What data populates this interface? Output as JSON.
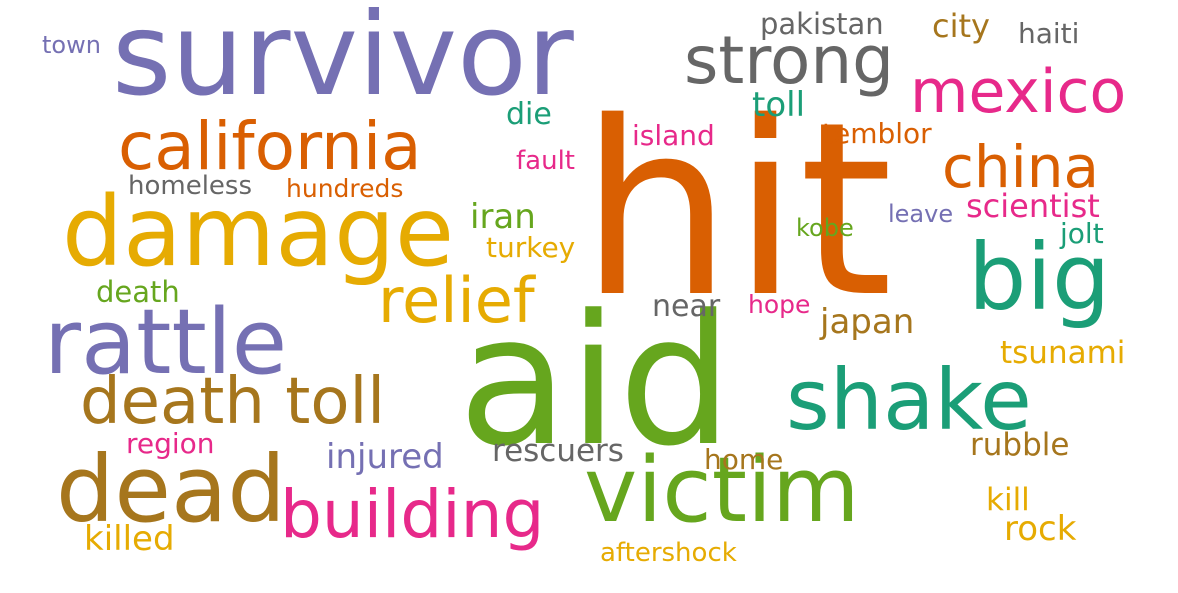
{
  "palette": {
    "purple": "#7570b3",
    "orange": "#d95f02",
    "teal": "#1b9e77",
    "green": "#66a61e",
    "gray": "#666666",
    "magenta": "#e7298a",
    "gold": "#e6ab02",
    "brown": "#a6761d"
  },
  "words": [
    {
      "text": "survivor",
      "color": "purple"
    },
    {
      "text": "hit",
      "color": "orange"
    },
    {
      "text": "aid",
      "color": "green"
    },
    {
      "text": "strong",
      "color": "gray"
    },
    {
      "text": "mexico",
      "color": "magenta"
    },
    {
      "text": "california",
      "color": "orange"
    },
    {
      "text": "damage",
      "color": "gold"
    },
    {
      "text": "china",
      "color": "orange"
    },
    {
      "text": "big",
      "color": "teal"
    },
    {
      "text": "rattle",
      "color": "purple"
    },
    {
      "text": "relief",
      "color": "gold"
    },
    {
      "text": "shake",
      "color": "teal"
    },
    {
      "text": "death toll",
      "color": "brown"
    },
    {
      "text": "dead",
      "color": "brown"
    },
    {
      "text": "victim",
      "color": "green"
    },
    {
      "text": "building",
      "color": "magenta"
    },
    {
      "text": "pakistan",
      "color": "gray"
    },
    {
      "text": "city",
      "color": "brown"
    },
    {
      "text": "haiti",
      "color": "gray"
    },
    {
      "text": "town",
      "color": "purple"
    },
    {
      "text": "toll",
      "color": "teal"
    },
    {
      "text": "die",
      "color": "teal"
    },
    {
      "text": "island",
      "color": "magenta"
    },
    {
      "text": "temblor",
      "color": "orange"
    },
    {
      "text": "fault",
      "color": "magenta"
    },
    {
      "text": "homeless",
      "color": "gray"
    },
    {
      "text": "hundreds",
      "color": "orange"
    },
    {
      "text": "iran",
      "color": "green"
    },
    {
      "text": "scientist",
      "color": "magenta"
    },
    {
      "text": "leave",
      "color": "purple"
    },
    {
      "text": "kobe",
      "color": "green"
    },
    {
      "text": "jolt",
      "color": "teal"
    },
    {
      "text": "turkey",
      "color": "gold"
    },
    {
      "text": "death",
      "color": "green"
    },
    {
      "text": "near",
      "color": "gray"
    },
    {
      "text": "hope",
      "color": "magenta"
    },
    {
      "text": "japan",
      "color": "brown"
    },
    {
      "text": "tsunami",
      "color": "gold"
    },
    {
      "text": "region",
      "color": "magenta"
    },
    {
      "text": "injured",
      "color": "purple"
    },
    {
      "text": "rescuers",
      "color": "gray"
    },
    {
      "text": "home",
      "color": "brown"
    },
    {
      "text": "rubble",
      "color": "brown"
    },
    {
      "text": "kill",
      "color": "gold"
    },
    {
      "text": "rock",
      "color": "gold"
    },
    {
      "text": "killed",
      "color": "gold"
    },
    {
      "text": "aftershock",
      "color": "gold"
    }
  ]
}
